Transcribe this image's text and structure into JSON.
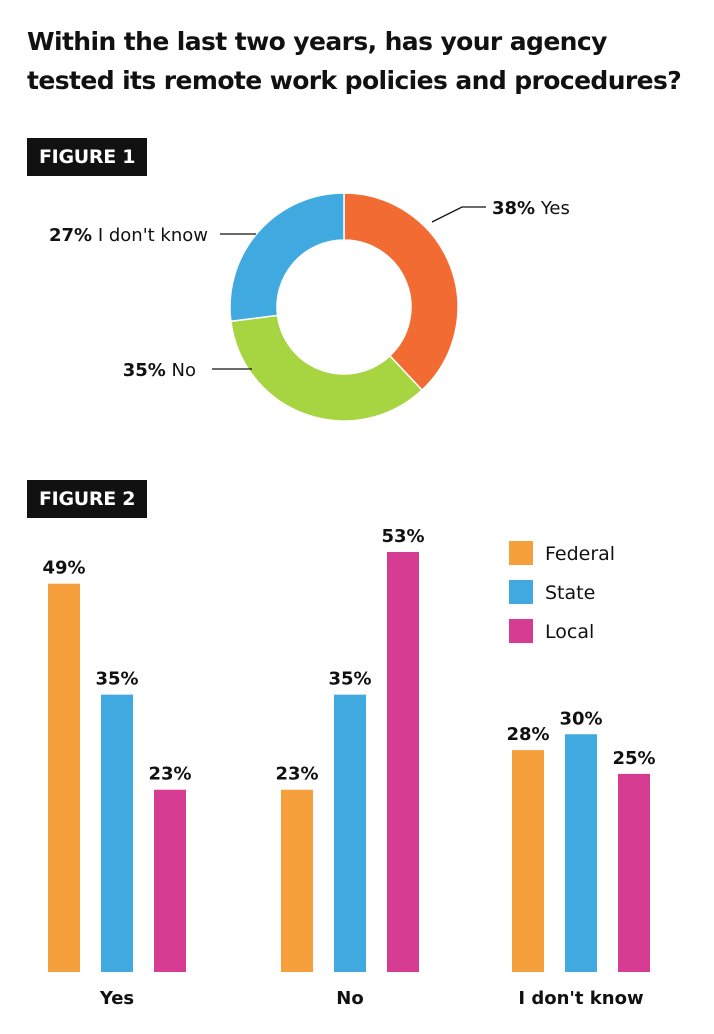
{
  "title": {
    "line1": "Within the last two years, has your agency",
    "line2": "tested its remote work policies and procedures?"
  },
  "chart_data": [
    {
      "figure_label": "FIGURE 1",
      "type": "pie",
      "donut": true,
      "slices": [
        {
          "label": "Yes",
          "value": 38,
          "value_text": "38%",
          "color": "#f26b33"
        },
        {
          "label": "No",
          "value": 35,
          "value_text": "35%",
          "color": "#a6d541"
        },
        {
          "label": "I don't know",
          "value": 27,
          "value_text": "27%",
          "color": "#3fa9e0"
        }
      ]
    },
    {
      "figure_label": "FIGURE 2",
      "type": "bar",
      "categories": [
        "Yes",
        "No",
        "I don't know"
      ],
      "series": [
        {
          "name": "Federal",
          "color": "#f5a03c",
          "values": [
            49,
            23,
            28
          ],
          "labels": [
            "49%",
            "23%",
            "28%"
          ]
        },
        {
          "name": "State",
          "color": "#3fa9e0",
          "values": [
            35,
            35,
            30
          ],
          "labels": [
            "35%",
            "35%",
            "30%"
          ]
        },
        {
          "name": "Local",
          "color": "#d63c92",
          "values": [
            23,
            53,
            25
          ],
          "labels": [
            "23%",
            "53%",
            "25%"
          ]
        }
      ],
      "legend_position": "top-right",
      "ylim": [
        0,
        53
      ]
    }
  ]
}
